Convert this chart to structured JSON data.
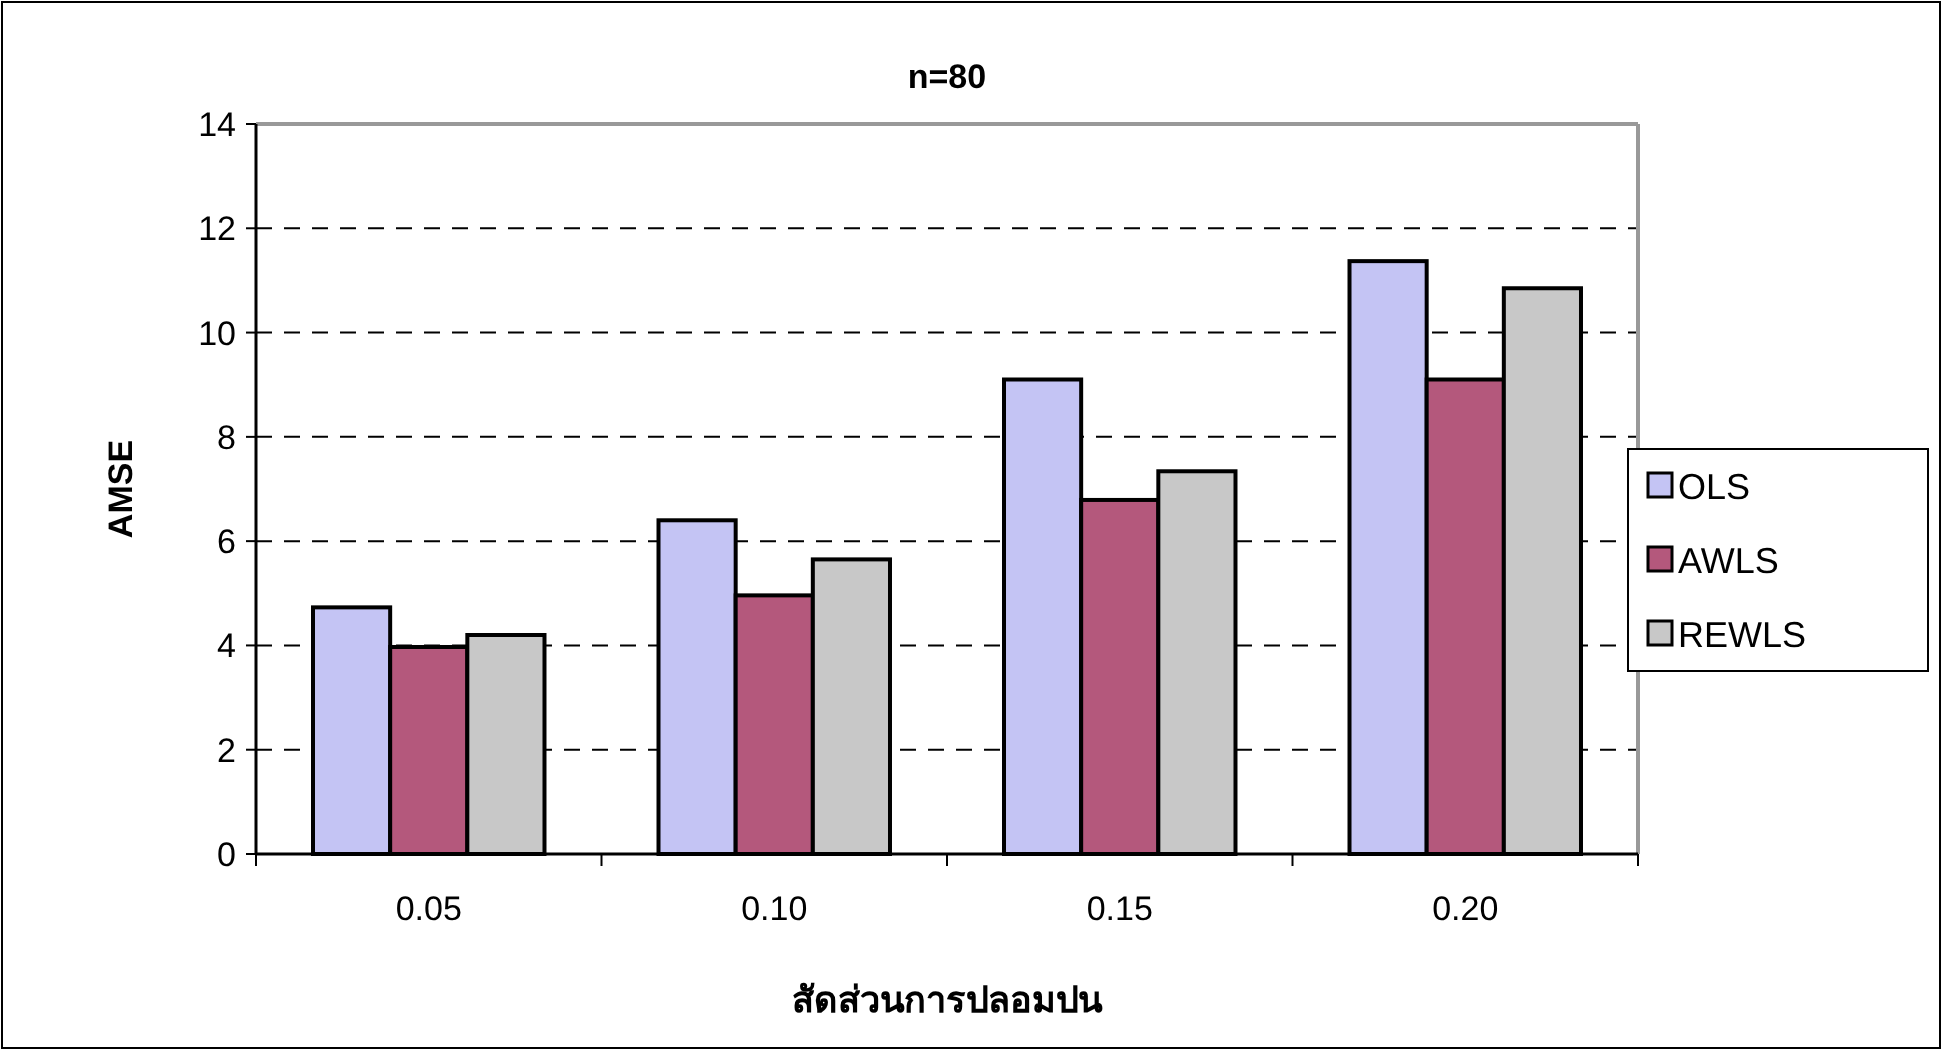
{
  "chart_data": {
    "type": "bar",
    "title": "n=80",
    "xlabel": "สัดส่วนการปลอมปน",
    "ylabel": "AMSE",
    "categories": [
      "0.05",
      "0.10",
      "0.15",
      "0.20"
    ],
    "series": [
      {
        "name": "OLS",
        "color": "#c4c4f4",
        "values": [
          4.73,
          6.4,
          9.1,
          11.37
        ]
      },
      {
        "name": "AWLS",
        "color": "#b4587c",
        "values": [
          3.97,
          4.96,
          6.79,
          9.1
        ]
      },
      {
        "name": "REWLS",
        "color": "#c8c8c8",
        "values": [
          4.2,
          5.65,
          7.34,
          10.85
        ]
      }
    ],
    "ylim": [
      0,
      14
    ],
    "yticks": [
      0,
      2,
      4,
      6,
      8,
      10,
      12,
      14
    ],
    "grid": "y",
    "legend": "right"
  }
}
